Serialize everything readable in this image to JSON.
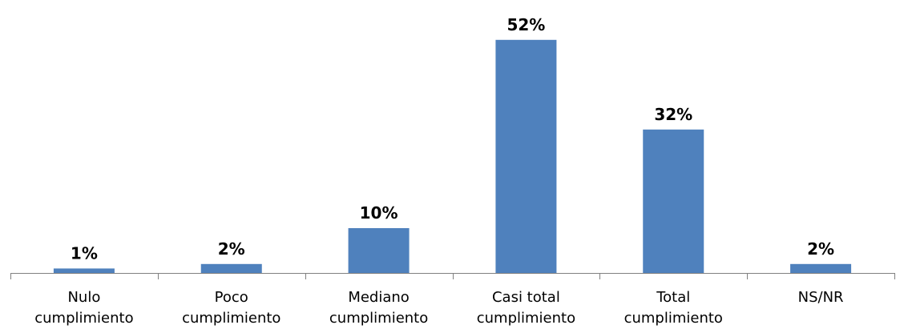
{
  "chart_data": {
    "type": "bar",
    "categories": [
      [
        "Nulo",
        "cumplimiento"
      ],
      [
        "Poco",
        "cumplimiento"
      ],
      [
        "Mediano",
        "cumplimiento"
      ],
      [
        "Casi total",
        "cumplimiento"
      ],
      [
        "Total",
        "cumplimiento"
      ],
      [
        "NS/NR"
      ]
    ],
    "values": [
      1,
      2,
      10,
      52,
      32,
      2
    ],
    "data_labels": [
      "1%",
      "2%",
      "10%",
      "52%",
      "32%",
      "2%"
    ],
    "title": "",
    "xlabel": "",
    "ylabel": "",
    "ylim": [
      0,
      55
    ],
    "grid": false,
    "legend": "none",
    "bar_color": "#4f81bd"
  }
}
